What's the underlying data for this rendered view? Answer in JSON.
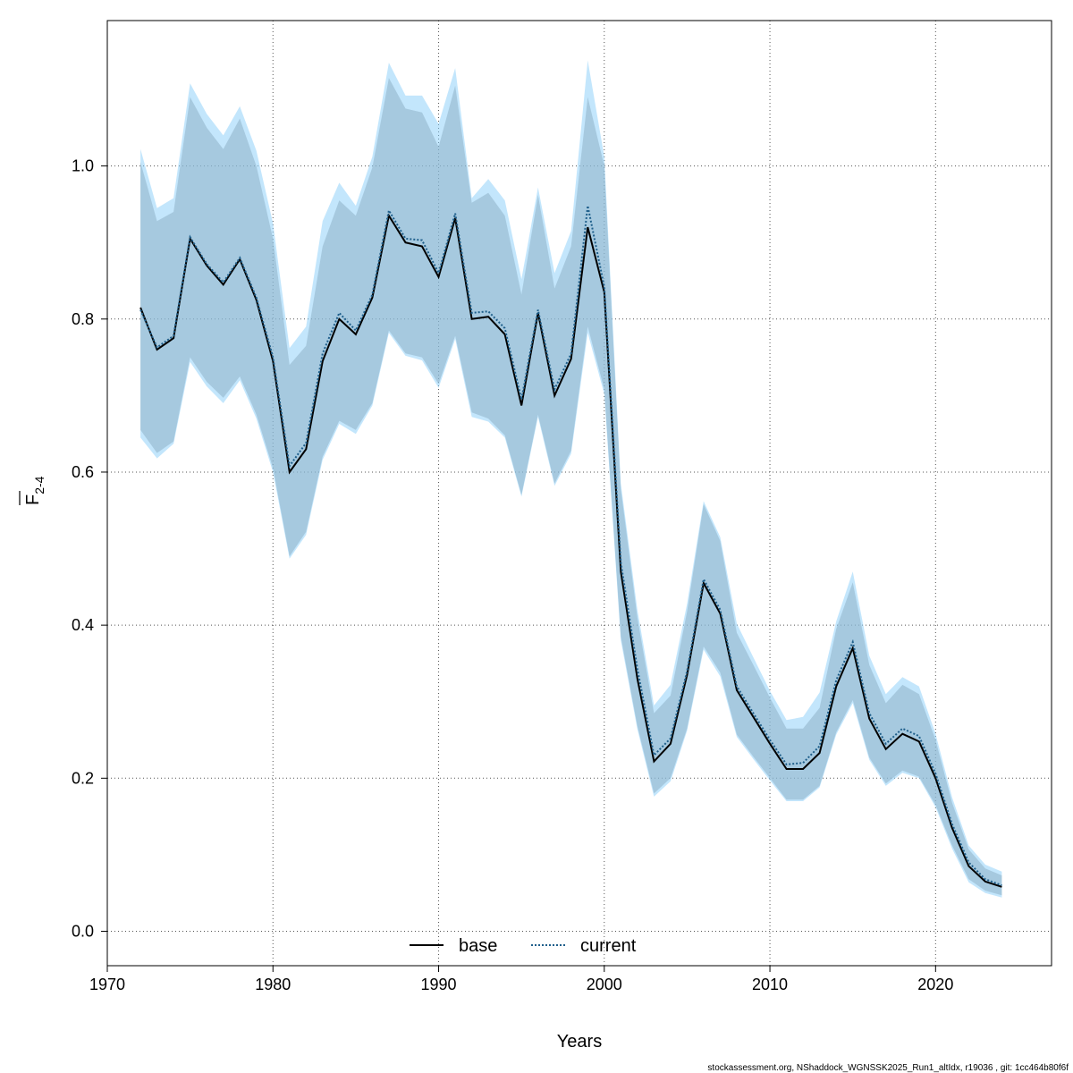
{
  "chart_data": {
    "type": "line",
    "title": "",
    "xlabel": "Years",
    "ylabel": "F",
    "ylabel_sub": "2-4",
    "xlim": [
      1970,
      2027
    ],
    "ylim": [
      -0.045,
      1.19
    ],
    "xticks": [
      1970,
      1980,
      1990,
      2000,
      2010,
      2020
    ],
    "yticks": [
      0.0,
      0.2,
      0.4,
      0.6,
      0.8,
      1.0
    ],
    "ytick_labels": [
      "0.0",
      "0.2",
      "0.4",
      "0.6",
      "0.8",
      "1.0"
    ],
    "grid": true,
    "legend_position": "bottom-center",
    "x": [
      1972,
      1973,
      1974,
      1975,
      1976,
      1977,
      1978,
      1979,
      1980,
      1981,
      1982,
      1983,
      1984,
      1985,
      1986,
      1987,
      1988,
      1989,
      1990,
      1991,
      1992,
      1993,
      1994,
      1995,
      1996,
      1997,
      1998,
      1999,
      2000,
      2001,
      2002,
      2003,
      2004,
      2005,
      2006,
      2007,
      2008,
      2009,
      2010,
      2011,
      2012,
      2013,
      2014,
      2015,
      2016,
      2017,
      2018,
      2019,
      2020,
      2021,
      2022,
      2023,
      2024
    ],
    "series": [
      {
        "name": "base",
        "color": "#000000",
        "dash": "solid",
        "band_color": "#8c8c8c",
        "values": [
          0.815,
          0.76,
          0.775,
          0.905,
          0.87,
          0.845,
          0.878,
          0.825,
          0.745,
          0.6,
          0.63,
          0.745,
          0.8,
          0.78,
          0.828,
          0.935,
          0.9,
          0.895,
          0.855,
          0.932,
          0.8,
          0.803,
          0.78,
          0.687,
          0.808,
          0.7,
          0.748,
          0.92,
          0.835,
          0.47,
          0.33,
          0.222,
          0.245,
          0.335,
          0.455,
          0.415,
          0.315,
          0.28,
          0.245,
          0.212,
          0.212,
          0.233,
          0.32,
          0.37,
          0.278,
          0.238,
          0.258,
          0.248,
          0.2,
          0.135,
          0.085,
          0.065,
          0.058
        ],
        "lower": [
          0.655,
          0.625,
          0.64,
          0.75,
          0.718,
          0.697,
          0.725,
          0.675,
          0.605,
          0.49,
          0.522,
          0.62,
          0.667,
          0.655,
          0.69,
          0.785,
          0.755,
          0.75,
          0.715,
          0.778,
          0.678,
          0.67,
          0.648,
          0.57,
          0.675,
          0.585,
          0.628,
          0.79,
          0.708,
          0.385,
          0.268,
          0.18,
          0.2,
          0.265,
          0.372,
          0.338,
          0.257,
          0.228,
          0.2,
          0.172,
          0.172,
          0.19,
          0.26,
          0.302,
          0.227,
          0.193,
          0.21,
          0.202,
          0.165,
          0.112,
          0.068,
          0.053,
          0.047
        ],
        "upper": [
          1.005,
          0.928,
          0.94,
          1.09,
          1.05,
          1.022,
          1.062,
          1.0,
          0.905,
          0.74,
          0.765,
          0.895,
          0.955,
          0.935,
          0.998,
          1.115,
          1.075,
          1.07,
          1.025,
          1.105,
          0.952,
          0.965,
          0.935,
          0.832,
          0.962,
          0.84,
          0.895,
          1.09,
          1.0,
          0.578,
          0.41,
          0.285,
          0.308,
          0.418,
          0.558,
          0.51,
          0.39,
          0.348,
          0.305,
          0.265,
          0.265,
          0.292,
          0.395,
          0.456,
          0.348,
          0.298,
          0.322,
          0.31,
          0.25,
          0.168,
          0.107,
          0.082,
          0.073
        ]
      },
      {
        "name": "current",
        "color": "#1f5f8b",
        "dash": "dotted",
        "band_color": "#87cefa",
        "values": [
          0.812,
          0.763,
          0.778,
          0.907,
          0.872,
          0.848,
          0.88,
          0.828,
          0.75,
          0.608,
          0.638,
          0.755,
          0.808,
          0.785,
          0.832,
          0.942,
          0.905,
          0.903,
          0.86,
          0.938,
          0.808,
          0.81,
          0.788,
          0.695,
          0.812,
          0.708,
          0.755,
          0.948,
          0.842,
          0.482,
          0.343,
          0.23,
          0.252,
          0.34,
          0.46,
          0.42,
          0.32,
          0.285,
          0.25,
          0.218,
          0.22,
          0.242,
          0.328,
          0.378,
          0.285,
          0.245,
          0.265,
          0.255,
          0.206,
          0.14,
          0.09,
          0.068,
          0.06
        ],
        "lower": [
          0.645,
          0.618,
          0.637,
          0.744,
          0.712,
          0.69,
          0.72,
          0.67,
          0.6,
          0.487,
          0.518,
          0.616,
          0.663,
          0.65,
          0.687,
          0.782,
          0.752,
          0.746,
          0.71,
          0.774,
          0.672,
          0.666,
          0.645,
          0.568,
          0.672,
          0.582,
          0.624,
          0.782,
          0.702,
          0.38,
          0.264,
          0.176,
          0.196,
          0.262,
          0.368,
          0.333,
          0.254,
          0.225,
          0.197,
          0.17,
          0.17,
          0.188,
          0.257,
          0.298,
          0.224,
          0.19,
          0.207,
          0.2,
          0.162,
          0.108,
          0.064,
          0.05,
          0.044
        ],
        "upper": [
          1.022,
          0.945,
          0.958,
          1.108,
          1.068,
          1.04,
          1.078,
          1.02,
          0.925,
          0.762,
          0.79,
          0.928,
          0.978,
          0.948,
          1.012,
          1.135,
          1.092,
          1.092,
          1.055,
          1.128,
          0.958,
          0.983,
          0.955,
          0.852,
          0.972,
          0.86,
          0.915,
          1.138,
          1.012,
          0.585,
          0.42,
          0.295,
          0.322,
          0.428,
          0.562,
          0.515,
          0.402,
          0.358,
          0.314,
          0.276,
          0.28,
          0.312,
          0.405,
          0.47,
          0.36,
          0.31,
          0.332,
          0.32,
          0.258,
          0.175,
          0.112,
          0.087,
          0.078
        ]
      }
    ]
  },
  "footer": "stockassessment.org, NShaddock_WGNSSK2025_Run1_altIdx, r19036 , git: 1cc464b80f6f"
}
